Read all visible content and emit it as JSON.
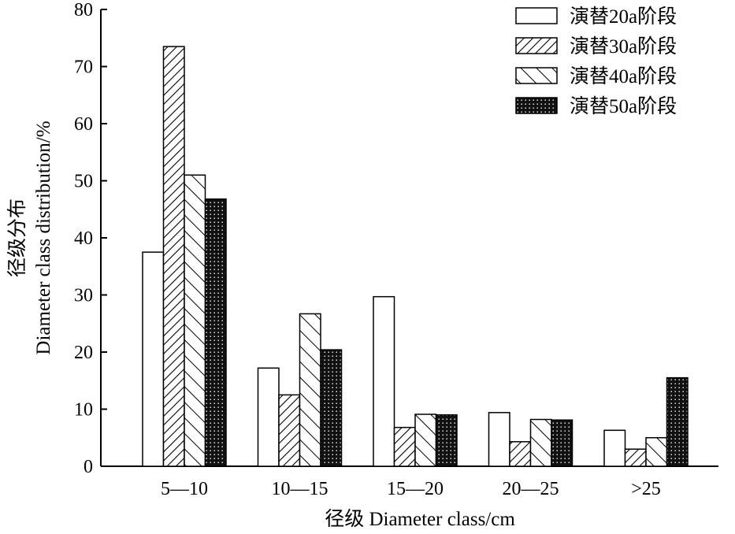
{
  "chart_data": {
    "type": "bar",
    "xlabel": "径级 Diameter class/cm",
    "ylabel_line1": "径级分布",
    "ylabel_line2": "Diameter class distribution/%",
    "categories": [
      "5—10",
      "10—15",
      "15—20",
      "20—25",
      ">25"
    ],
    "ylim": [
      0,
      80
    ],
    "yticks": [
      0,
      10,
      20,
      30,
      40,
      50,
      60,
      70,
      80
    ],
    "grid": false,
    "legend_position": "top-right",
    "series": [
      {
        "name": "演替20a阶段",
        "pattern": "white",
        "values": [
          37.5,
          17.2,
          29.7,
          9.4,
          6.3
        ]
      },
      {
        "name": "演替30a阶段",
        "pattern": "forward-hatch",
        "values": [
          73.5,
          12.5,
          6.8,
          4.3,
          3.0
        ]
      },
      {
        "name": "演替40a阶段",
        "pattern": "back-hatch",
        "values": [
          51.0,
          26.7,
          9.1,
          8.2,
          5.0
        ]
      },
      {
        "name": "演替50a阶段",
        "pattern": "dotted-dark",
        "values": [
          46.8,
          20.4,
          9.0,
          8.1,
          15.5
        ]
      }
    ]
  }
}
